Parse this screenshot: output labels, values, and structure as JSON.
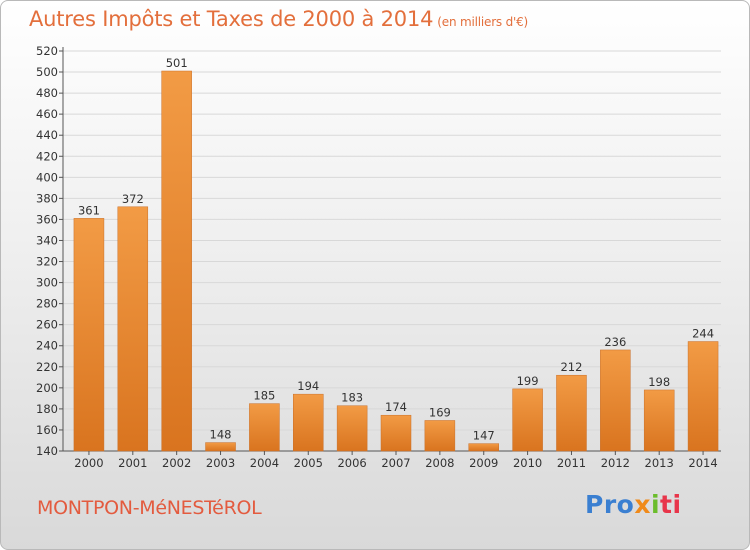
{
  "header": {
    "title": "Autres Impôts et Taxes de 2000 à 2014",
    "unit": "(en milliers d'€)"
  },
  "footer": {
    "city": "MONTPON-MéNESTéROL",
    "brand": {
      "p1": "Pro",
      "p2": "x",
      "p3": "i",
      "p4": "ti"
    }
  },
  "colors": {
    "bar": "#f29b45",
    "bar_dark": "#d9741f",
    "title": "#e36f3c",
    "grid": "#d8d8d8",
    "axis": "#555555"
  },
  "chart_data": {
    "type": "bar",
    "title": "Autres Impôts et Taxes de 2000 à 2014",
    "xlabel": "",
    "ylabel": "(en milliers d'€)",
    "categories": [
      "2000",
      "2001",
      "2002",
      "2003",
      "2004",
      "2005",
      "2006",
      "2007",
      "2008",
      "2009",
      "2010",
      "2011",
      "2012",
      "2013",
      "2014"
    ],
    "values": [
      361,
      372,
      501,
      148,
      185,
      194,
      183,
      174,
      169,
      147,
      199,
      212,
      236,
      198,
      244
    ],
    "ylim": [
      140,
      520
    ],
    "ytick_step": 20,
    "grid": true
  }
}
